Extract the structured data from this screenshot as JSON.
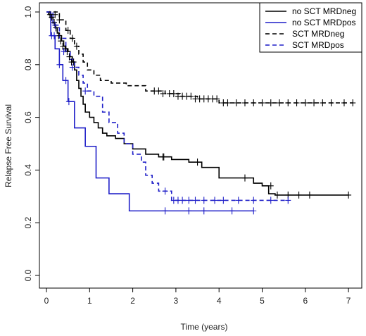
{
  "chart_data": {
    "type": "line",
    "step": true,
    "xlabel": "Time (years)",
    "ylabel": "Relapse Free Survival",
    "xlim": [
      0,
      7.25
    ],
    "ylim": [
      0,
      1.02
    ],
    "xticks": [
      0,
      1,
      2,
      3,
      4,
      5,
      6,
      7
    ],
    "yticks": [
      0.0,
      0.2,
      0.4,
      0.6,
      0.8,
      1.0
    ],
    "ytick_labels": [
      "0.0",
      "0.2",
      "0.4",
      "0.6",
      "0.8",
      "1.0"
    ],
    "legend_position": "top-right",
    "series": [
      {
        "name": "no SCT MRDneg",
        "color": "#000000",
        "dash": "solid",
        "x": [
          0,
          0.05,
          0.1,
          0.15,
          0.2,
          0.25,
          0.3,
          0.35,
          0.4,
          0.45,
          0.5,
          0.55,
          0.6,
          0.65,
          0.7,
          0.75,
          0.8,
          0.85,
          0.9,
          1.0,
          1.1,
          1.2,
          1.3,
          1.4,
          1.6,
          1.8,
          2.0,
          2.3,
          2.6,
          2.9,
          3.3,
          3.6,
          4.0,
          4.8,
          5.0,
          5.15,
          5.3
        ],
        "y": [
          1.0,
          0.99,
          0.98,
          0.96,
          0.94,
          0.92,
          0.91,
          0.89,
          0.87,
          0.86,
          0.85,
          0.83,
          0.81,
          0.78,
          0.74,
          0.71,
          0.68,
          0.65,
          0.62,
          0.6,
          0.58,
          0.56,
          0.54,
          0.53,
          0.52,
          0.5,
          0.48,
          0.46,
          0.45,
          0.44,
          0.43,
          0.41,
          0.37,
          0.35,
          0.34,
          0.31,
          0.305
        ],
        "x_end": 7.0,
        "censor_x": [
          0.08,
          0.12,
          0.18,
          0.22,
          0.28,
          0.33,
          0.38,
          0.43,
          0.48,
          0.53,
          0.58,
          0.63,
          2.7,
          2.72,
          3.5,
          4.6,
          5.2,
          5.35,
          5.6,
          5.85,
          6.1,
          7.0
        ],
        "censor_y": [
          0.99,
          0.98,
          0.96,
          0.94,
          0.91,
          0.89,
          0.87,
          0.86,
          0.85,
          0.83,
          0.81,
          0.81,
          0.45,
          0.45,
          0.43,
          0.37,
          0.34,
          0.305,
          0.305,
          0.305,
          0.305,
          0.305
        ]
      },
      {
        "name": "no SCT MRDpos",
        "color": "#1f1fc8",
        "dash": "solid",
        "x": [
          0,
          0.1,
          0.2,
          0.3,
          0.38,
          0.5,
          0.65,
          0.9,
          1.15,
          1.45,
          1.92
        ],
        "y": [
          1.0,
          0.91,
          0.86,
          0.8,
          0.74,
          0.66,
          0.56,
          0.49,
          0.37,
          0.31,
          0.245
        ],
        "x_end": 4.8,
        "censor_x": [
          0.12,
          0.18,
          0.3,
          0.45,
          0.52,
          2.75,
          3.3,
          3.65,
          4.3,
          4.8
        ],
        "censor_y": [
          0.91,
          0.91,
          0.8,
          0.74,
          0.66,
          0.245,
          0.245,
          0.245,
          0.245,
          0.245
        ]
      },
      {
        "name": "SCT MRDneg",
        "color": "#000000",
        "dash": "dashed",
        "x": [
          0,
          0.3,
          0.45,
          0.55,
          0.65,
          0.75,
          0.85,
          0.95,
          1.1,
          1.25,
          1.5,
          1.85,
          2.3,
          2.75,
          3.1,
          3.5,
          4.0
        ],
        "y": [
          1.0,
          0.97,
          0.93,
          0.9,
          0.87,
          0.84,
          0.81,
          0.78,
          0.76,
          0.74,
          0.73,
          0.72,
          0.7,
          0.69,
          0.68,
          0.67,
          0.655
        ],
        "x_end": 7.1,
        "censor_x": [
          0.2,
          0.3,
          0.5,
          0.6,
          0.7,
          2.5,
          2.6,
          2.7,
          2.85,
          2.95,
          3.05,
          3.15,
          3.25,
          3.35,
          3.45,
          3.55,
          3.65,
          3.75,
          3.85,
          3.95,
          4.1,
          4.2,
          4.4,
          4.6,
          4.8,
          5.0,
          5.2,
          5.4,
          5.6,
          5.8,
          6.0,
          6.2,
          6.4,
          6.6,
          6.9,
          7.1
        ],
        "censor_y": [
          0.99,
          0.97,
          0.93,
          0.9,
          0.87,
          0.7,
          0.7,
          0.69,
          0.69,
          0.69,
          0.68,
          0.68,
          0.68,
          0.68,
          0.67,
          0.67,
          0.67,
          0.67,
          0.67,
          0.67,
          0.655,
          0.655,
          0.655,
          0.655,
          0.655,
          0.655,
          0.655,
          0.655,
          0.655,
          0.655,
          0.655,
          0.655,
          0.655,
          0.655,
          0.655,
          0.655
        ]
      },
      {
        "name": "SCT MRDpos",
        "color": "#1f1fc8",
        "dash": "dashed",
        "x": [
          0,
          0.15,
          0.3,
          0.45,
          0.55,
          0.65,
          0.75,
          0.85,
          0.95,
          1.1,
          1.3,
          1.45,
          1.65,
          1.8,
          2.0,
          2.2,
          2.3,
          2.45,
          2.6,
          2.9
        ],
        "y": [
          1.0,
          0.95,
          0.9,
          0.85,
          0.82,
          0.79,
          0.76,
          0.73,
          0.7,
          0.68,
          0.62,
          0.58,
          0.54,
          0.5,
          0.46,
          0.43,
          0.38,
          0.35,
          0.32,
          0.285
        ],
        "x_end": 5.6,
        "censor_x": [
          0.2,
          0.4,
          0.6,
          0.9,
          2.75,
          2.95,
          3.05,
          3.15,
          3.3,
          3.45,
          3.65,
          3.9,
          4.1,
          4.45,
          4.8,
          5.2,
          5.6
        ],
        "censor_y": [
          0.95,
          0.85,
          0.79,
          0.7,
          0.32,
          0.285,
          0.285,
          0.285,
          0.285,
          0.285,
          0.285,
          0.285,
          0.285,
          0.285,
          0.285,
          0.285,
          0.285
        ]
      }
    ]
  }
}
